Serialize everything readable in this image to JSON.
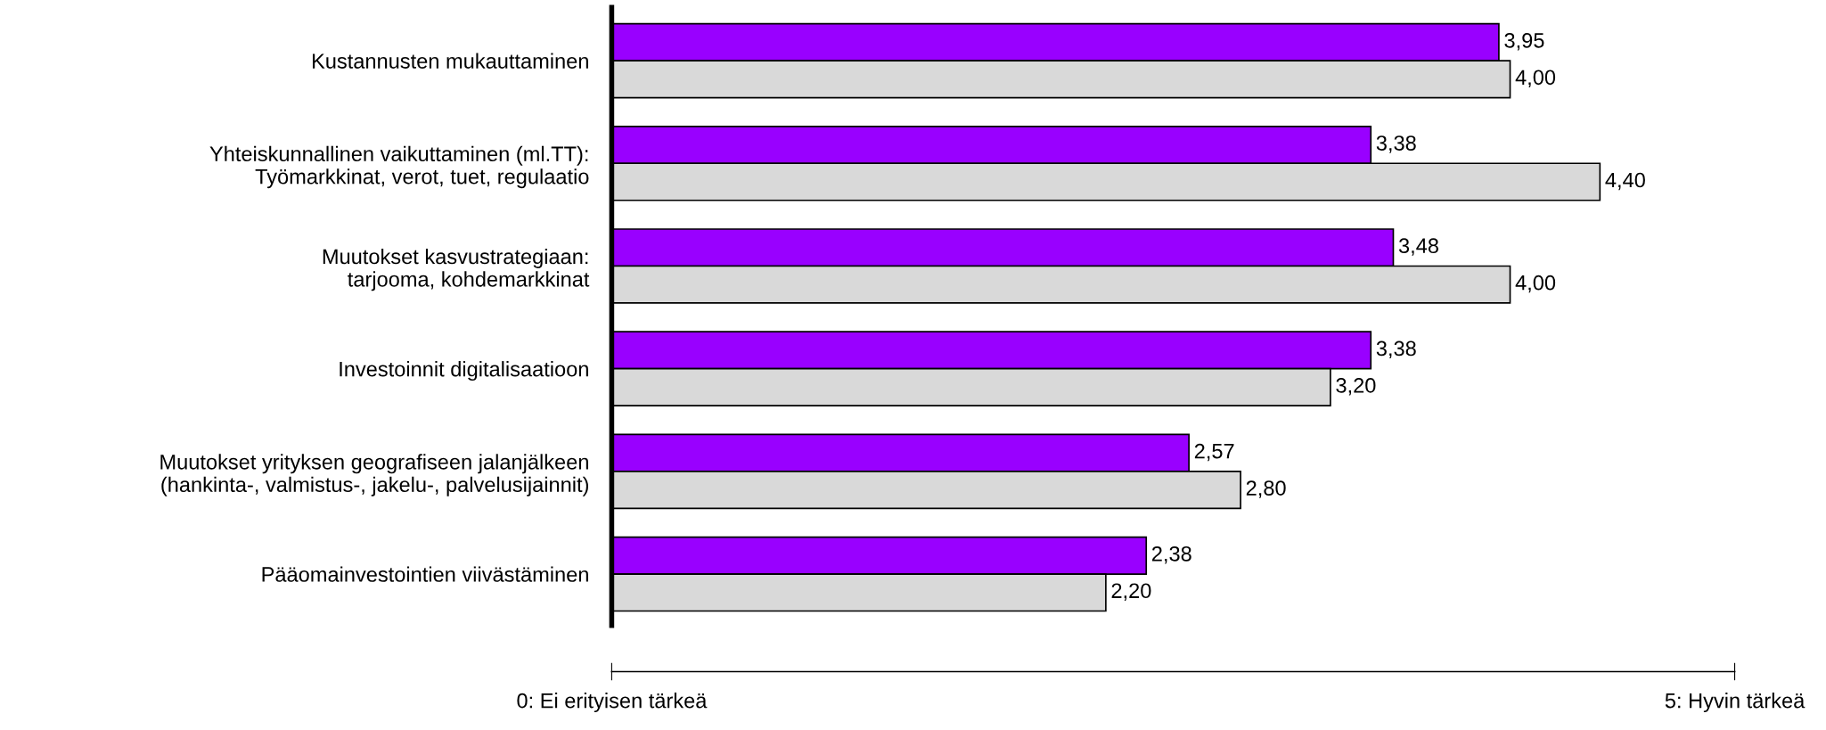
{
  "chart_data": {
    "type": "bar",
    "orientation": "horizontal",
    "categories": [
      "Kustannusten mukauttaminen",
      "Yhteiskunnallinen vaikuttaminen (ml.TT):\nTyömarkkinat, verot, tuet, regulaatio",
      "Muutokset kasvustrategiaan:\ntarjooma, kohdemarkkinat",
      "Investoinnit digitalisaatioon",
      "Muutokset yrityksen geografiseen jalanjälkeen\n(hankinta-, valmistus-, jakelu-, palvelusijainnit)",
      "Pääomainvestointien viivästäminen"
    ],
    "series": [
      {
        "color": "#9900ff",
        "values": [
          3.95,
          3.38,
          3.48,
          3.38,
          2.57,
          2.38
        ],
        "value_labels": [
          "3,95",
          "3,38",
          "3,48",
          "3,38",
          "2,57",
          "2,38"
        ]
      },
      {
        "color": "#d9d9d9",
        "values": [
          4.0,
          4.4,
          4.0,
          3.2,
          2.8,
          2.2
        ],
        "value_labels": [
          "4,00",
          "4,40",
          "4,00",
          "3,20",
          "2,80",
          "2,20"
        ]
      }
    ],
    "xlim": [
      0,
      5
    ],
    "xticks": [
      {
        "value": 0,
        "label": "0: Ei erityisen tärkeä"
      },
      {
        "value": 5,
        "label": "5: Hyvin tärkeä"
      }
    ],
    "grid": false,
    "legend": false
  }
}
